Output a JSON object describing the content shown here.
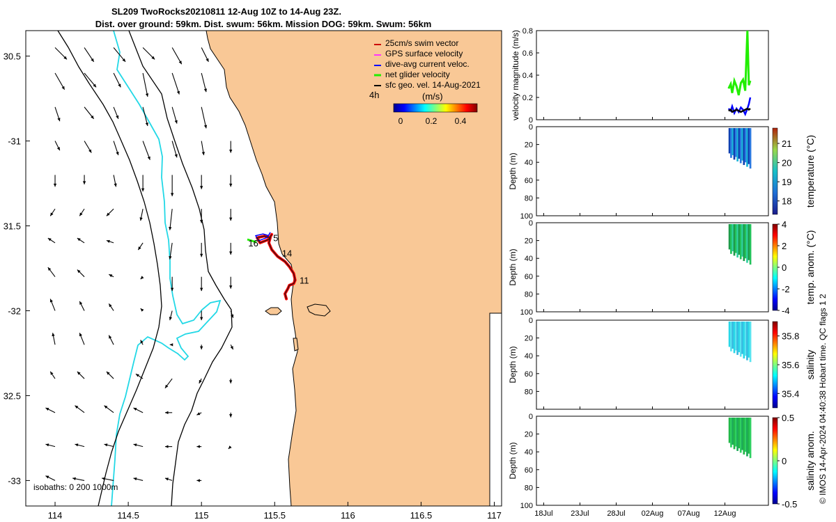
{
  "title_line1": "SL209 TwoRocks20210811 12-Aug 10Z to 14-Aug 23Z.",
  "title_line2": "Dist. over ground: 59km. Dist. swum: 56km. Mission DOG: 59km. Swum: 56km",
  "footer_vertical": "© IMOS 14-Apr-2024 04:40:38 Hobart time. QC flags 1  2",
  "colors": {
    "land": "#f9c896",
    "shelf_isobath": "#22d8e6",
    "track": "#ff0000",
    "swim_vector": "#cc0000",
    "gps_velocity": "#ff33ff",
    "dive_avg": "#0000ff",
    "net_velocity": "#22ee00",
    "geo_vel": "#000000"
  },
  "chart_data": [
    {
      "type": "map",
      "xlim": [
        113.8,
        117.05
      ],
      "ylim": [
        -33.15,
        -30.35
      ],
      "x_tick_labels": [
        "114",
        "114.5",
        "115",
        "115.5",
        "116",
        "116.5",
        "117"
      ],
      "x_ticks": [
        114,
        114.5,
        115,
        115.5,
        116,
        116.5,
        117
      ],
      "y_tick_labels": [
        "30.5",
        "-31",
        "31.5",
        "-32",
        "32.5",
        "-33"
      ],
      "y_ticks": [
        -30.5,
        -31,
        -31.5,
        -32,
        -32.5,
        -33
      ],
      "legend": [
        {
          "label": "25cm/s swim vector",
          "color": "#cc0000"
        },
        {
          "label": "GPS surface velocity",
          "color": "#ff33ff"
        },
        {
          "label": "dive-avg current veloc.",
          "color": "#0000ff"
        },
        {
          "label": "net glider velocity",
          "color": "#22ee00"
        },
        {
          "label": "sfc geo. vel. 14-Aug-2021",
          "color": "#000000"
        }
      ],
      "legend_placement": "top-right",
      "scale_label": "4h",
      "colorbar": {
        "label": "(m/s)",
        "ticks": [
          "0",
          "0.2",
          "0.4"
        ],
        "range": [
          0,
          0.5
        ]
      },
      "isobath_label": "isobaths: 0   200  1000m",
      "track": [
        [
          115.58,
          -31.93
        ],
        [
          115.57,
          -31.9
        ],
        [
          115.59,
          -31.87
        ],
        [
          115.6,
          -31.85
        ],
        [
          115.63,
          -31.84
        ],
        [
          115.64,
          -31.82
        ],
        [
          115.63,
          -31.78
        ],
        [
          115.6,
          -31.74
        ],
        [
          115.57,
          -31.71
        ],
        [
          115.52,
          -31.68
        ],
        [
          115.48,
          -31.64
        ],
        [
          115.46,
          -31.6
        ],
        [
          115.47,
          -31.57
        ],
        [
          115.43,
          -31.56
        ],
        [
          115.38,
          -31.57
        ],
        [
          115.4,
          -31.6
        ],
        [
          115.46,
          -31.58
        ],
        [
          115.48,
          -31.55
        ]
      ],
      "track_labels": [
        {
          "text": "16",
          "lon": 115.32,
          "lat": -31.62
        },
        {
          "text": "5",
          "lon": 115.49,
          "lat": -31.59
        },
        {
          "text": "14",
          "lon": 115.55,
          "lat": -31.68
        },
        {
          "text": "11",
          "lon": 115.67,
          "lat": -31.84
        }
      ],
      "current_vectors": [
        [
          114.0,
          -30.45,
          0.05,
          -0.05
        ],
        [
          114.2,
          -30.45,
          0.04,
          -0.06
        ],
        [
          114.4,
          -30.45,
          0.05,
          -0.06
        ],
        [
          114.6,
          -30.45,
          0.05,
          -0.05
        ],
        [
          114.8,
          -30.45,
          0.04,
          -0.07
        ],
        [
          115.0,
          -30.45,
          0.03,
          -0.06
        ],
        [
          114.0,
          -30.6,
          0.04,
          -0.07
        ],
        [
          114.2,
          -30.6,
          0.05,
          -0.06
        ],
        [
          114.4,
          -30.6,
          0.03,
          -0.06
        ],
        [
          114.6,
          -30.6,
          0.02,
          -0.1
        ],
        [
          114.8,
          -30.6,
          0.03,
          -0.09
        ],
        [
          115.0,
          -30.6,
          0.02,
          -0.08
        ],
        [
          114.0,
          -30.8,
          0.02,
          -0.06
        ],
        [
          114.2,
          -30.8,
          0.04,
          -0.05
        ],
        [
          114.4,
          -30.8,
          0.02,
          -0.05
        ],
        [
          114.6,
          -30.8,
          0.02,
          -0.08
        ],
        [
          114.8,
          -30.8,
          0.02,
          -0.07
        ],
        [
          115.0,
          -30.8,
          0.02,
          -0.09
        ],
        [
          114.0,
          -31.0,
          0.02,
          -0.04
        ],
        [
          114.2,
          -31.0,
          0.03,
          -0.05
        ],
        [
          114.4,
          -31.0,
          0.02,
          -0.06
        ],
        [
          114.6,
          -31.0,
          0.03,
          -0.08
        ],
        [
          114.8,
          -31.0,
          0.02,
          -0.07
        ],
        [
          115.0,
          -31.0,
          0.01,
          -0.06
        ],
        [
          115.2,
          -31.0,
          0.0,
          -0.05
        ],
        [
          114.0,
          -31.2,
          0.0,
          -0.05
        ],
        [
          114.2,
          -31.2,
          0.0,
          -0.04
        ],
        [
          114.4,
          -31.2,
          0.01,
          -0.05
        ],
        [
          114.6,
          -31.2,
          0.0,
          -0.07
        ],
        [
          114.8,
          -31.2,
          0.0,
          -0.09
        ],
        [
          115.0,
          -31.2,
          0.0,
          -0.06
        ],
        [
          115.2,
          -31.2,
          0.0,
          -0.05
        ],
        [
          114.0,
          -31.4,
          -0.02,
          -0.03
        ],
        [
          114.2,
          -31.4,
          -0.02,
          -0.03
        ],
        [
          114.4,
          -31.4,
          -0.03,
          -0.03
        ],
        [
          114.6,
          -31.4,
          -0.01,
          -0.05
        ],
        [
          114.8,
          -31.4,
          -0.01,
          -0.09
        ],
        [
          115.0,
          -31.4,
          0.0,
          -0.06
        ],
        [
          115.2,
          -31.4,
          0.0,
          -0.05
        ],
        [
          114.0,
          -31.6,
          -0.03,
          0.02
        ],
        [
          114.2,
          -31.6,
          -0.03,
          0.02
        ],
        [
          114.4,
          -31.6,
          -0.03,
          0.01
        ],
        [
          114.6,
          -31.6,
          -0.02,
          -0.03
        ],
        [
          114.8,
          -31.6,
          -0.01,
          -0.07
        ],
        [
          115.0,
          -31.6,
          0.0,
          -0.06
        ],
        [
          115.2,
          -31.6,
          0.0,
          -0.05
        ],
        [
          114.0,
          -31.8,
          -0.03,
          0.04
        ],
        [
          114.2,
          -31.8,
          -0.03,
          0.03
        ],
        [
          114.4,
          -31.8,
          -0.02,
          0.01
        ],
        [
          114.6,
          -31.8,
          -0.01,
          -0.01
        ],
        [
          114.8,
          -31.8,
          0.0,
          -0.06
        ],
        [
          115.0,
          -31.8,
          0.0,
          -0.06
        ],
        [
          115.2,
          -31.8,
          0.0,
          -0.05
        ],
        [
          114.0,
          -32.0,
          -0.02,
          0.05
        ],
        [
          114.2,
          -32.0,
          -0.02,
          0.04
        ],
        [
          114.4,
          -32.0,
          -0.02,
          0.03
        ],
        [
          114.6,
          -32.0,
          -0.01,
          0.01
        ],
        [
          114.8,
          -32.0,
          -0.01,
          -0.04
        ],
        [
          115.0,
          -32.0,
          0.0,
          -0.04
        ],
        [
          115.2,
          -32.0,
          0.01,
          -0.03
        ],
        [
          114.0,
          -32.2,
          -0.01,
          0.05
        ],
        [
          114.2,
          -32.2,
          -0.02,
          0.05
        ],
        [
          114.4,
          -32.2,
          -0.02,
          0.04
        ],
        [
          114.6,
          -32.2,
          -0.01,
          0.02
        ],
        [
          114.8,
          -32.2,
          -0.01,
          0.0
        ],
        [
          115.0,
          -32.2,
          0.0,
          -0.02
        ],
        [
          115.2,
          -32.2,
          0.01,
          -0.02
        ],
        [
          114.0,
          -32.4,
          -0.02,
          0.03
        ],
        [
          114.2,
          -32.4,
          -0.03,
          0.03
        ],
        [
          114.4,
          -32.4,
          -0.03,
          0.03
        ],
        [
          114.6,
          -32.4,
          -0.03,
          0.02
        ],
        [
          114.8,
          -32.4,
          -0.03,
          -0.04
        ],
        [
          115.0,
          -32.4,
          -0.01,
          -0.02
        ],
        [
          115.2,
          -32.4,
          0.0,
          -0.02
        ],
        [
          114.0,
          -32.6,
          -0.04,
          0.02
        ],
        [
          114.2,
          -32.6,
          -0.04,
          0.03
        ],
        [
          114.4,
          -32.6,
          -0.04,
          0.03
        ],
        [
          114.6,
          -32.6,
          -0.04,
          0.02
        ],
        [
          114.8,
          -32.6,
          -0.03,
          0.0
        ],
        [
          115.0,
          -32.6,
          -0.02,
          -0.01
        ],
        [
          115.2,
          -32.6,
          0.0,
          -0.02
        ],
        [
          114.0,
          -32.8,
          -0.04,
          0.01
        ],
        [
          114.2,
          -32.8,
          -0.04,
          0.01
        ],
        [
          114.4,
          -32.8,
          -0.04,
          0.01
        ],
        [
          114.6,
          -32.8,
          -0.04,
          0.01
        ],
        [
          114.8,
          -32.8,
          -0.03,
          0.0
        ],
        [
          115.0,
          -32.8,
          -0.02,
          0.0
        ],
        [
          115.2,
          -32.8,
          -0.01,
          -0.01
        ],
        [
          114.0,
          -33.0,
          -0.04,
          0.02
        ],
        [
          114.2,
          -33.0,
          -0.05,
          0.01
        ],
        [
          114.4,
          -33.0,
          -0.05,
          0.01
        ],
        [
          114.6,
          -33.0,
          -0.04,
          0.01
        ],
        [
          114.8,
          -33.0,
          -0.03,
          0.01
        ],
        [
          115.0,
          -33.0,
          -0.02,
          0.0
        ]
      ]
    },
    {
      "type": "line",
      "ylabel": "velocity magnitude (m/s)",
      "ylim": [
        0,
        0.8
      ],
      "y_tick_labels": [
        "0",
        "0.2",
        "0.4",
        "0.6",
        "0.8"
      ],
      "y_ticks": [
        0,
        0.2,
        0.4,
        0.6,
        0.8
      ],
      "xlim": [
        0,
        32
      ],
      "series": [
        {
          "color": "#22ee00",
          "x": [
            26.5,
            26.8,
            27.0,
            27.3,
            27.6,
            27.9,
            28.2,
            28.5,
            28.8,
            29.1,
            29.3,
            29.5
          ],
          "y": [
            0.28,
            0.32,
            0.24,
            0.35,
            0.3,
            0.22,
            0.33,
            0.36,
            0.26,
            0.8,
            0.31,
            0.35
          ]
        },
        {
          "color": "#0000ff",
          "x": [
            26.5,
            26.8,
            27.0,
            27.3,
            27.6,
            27.9,
            28.2,
            28.5,
            28.8,
            29.1,
            29.3,
            29.5
          ],
          "y": [
            0.1,
            0.08,
            0.12,
            0.06,
            0.1,
            0.07,
            0.11,
            0.09,
            0.05,
            0.1,
            0.14,
            0.2
          ]
        },
        {
          "color": "#000000",
          "x": [
            26.5,
            26.8,
            27.0,
            27.3,
            27.6,
            27.9,
            28.2,
            28.5,
            28.8,
            29.1,
            29.3,
            29.5
          ],
          "y": [
            0.08,
            0.09,
            0.07,
            0.08,
            0.09,
            0.08,
            0.07,
            0.08,
            0.09,
            0.1,
            0.09,
            0.1
          ]
        }
      ]
    },
    {
      "type": "heatmap",
      "ylabel": "Depth (m)",
      "ylim": [
        0,
        100
      ],
      "y_tick_labels": [
        "0",
        "20",
        "40",
        "60",
        "80",
        "100"
      ],
      "colorbar_label": "temperature (°C)",
      "colorbar_ticks": [
        "18",
        "19",
        "20",
        "21"
      ],
      "colorbar_values": [
        18,
        19,
        20,
        21
      ],
      "colorbar_range": [
        17.3,
        21.8
      ]
    },
    {
      "type": "heatmap",
      "ylabel": "Depth (m)",
      "ylim": [
        0,
        100
      ],
      "y_tick_labels": [
        "0",
        "20",
        "40",
        "60",
        "80",
        "100"
      ],
      "colorbar_label": "temp. anom. (°C)",
      "colorbar_ticks": [
        "-4",
        "-2",
        "0",
        "2",
        "4"
      ],
      "colorbar_values": [
        -4,
        -2,
        0,
        2,
        4
      ],
      "colorbar_range": [
        -4,
        4
      ]
    },
    {
      "type": "heatmap",
      "ylabel": "Depth (m)",
      "ylim": [
        0,
        100
      ],
      "y_tick_labels": [
        "0",
        "20",
        "40",
        "60",
        "80"
      ],
      "colorbar_label": "salinity",
      "colorbar_ticks": [
        "35.4",
        "35.6",
        "35.8"
      ],
      "colorbar_values": [
        35.4,
        35.6,
        35.8
      ],
      "colorbar_range": [
        35.3,
        35.9
      ]
    },
    {
      "type": "heatmap",
      "ylabel": "Depth (m)",
      "ylim": [
        0,
        100
      ],
      "y_tick_labels": [
        "0",
        "20",
        "40",
        "60",
        "80",
        "100"
      ],
      "colorbar_label": "salinity anom.",
      "colorbar_ticks": [
        "-0.5",
        "0",
        "0.5"
      ],
      "colorbar_values": [
        -0.5,
        0,
        0.5
      ],
      "colorbar_range": [
        -0.5,
        0.5
      ],
      "x_tick_labels": [
        "18Jul",
        "23Jul",
        "28Jul",
        "02Aug",
        "07Aug",
        "12Aug"
      ],
      "x_ticks": [
        1,
        6,
        11,
        16,
        21,
        26
      ]
    }
  ]
}
